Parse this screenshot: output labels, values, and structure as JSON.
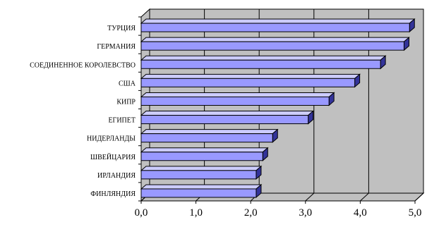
{
  "chart_data": {
    "type": "bar",
    "orientation": "horizontal",
    "style": "3d",
    "categories": [
      "ТУРЦИЯ",
      "ГЕРМАНИЯ",
      "СОЕДИНЕННОЕ КОРОЛЕВСТВО",
      "США",
      "КИПР",
      "ЕГИПЕТ",
      "НИДЕРЛАНДЫ",
      "ШВЕЙЦАРИЯ",
      "ИРЛАНДИЯ",
      "ФИНЛЯНДИЯ"
    ],
    "values": [
      4.9,
      4.8,
      4.37,
      3.9,
      3.43,
      3.05,
      2.4,
      2.22,
      2.1,
      2.1
    ],
    "xlim": [
      0,
      5
    ],
    "x_ticks": [
      0,
      1,
      2,
      3,
      4,
      5
    ],
    "x_tick_labels": [
      "0,0",
      "1,0",
      "2,0",
      "3,0",
      "4,0",
      "5,0"
    ],
    "grid": true,
    "legend": "none",
    "title": "",
    "xlabel": "",
    "ylabel": "",
    "colors": {
      "bar_front": "#9999ff",
      "bar_top": "#ccccff",
      "bar_side": "#333399",
      "back_wall": "#c0c0c0",
      "floor": "#c0c0c0",
      "left_wall": "#c0c0c0",
      "gridline": "#000000"
    }
  }
}
